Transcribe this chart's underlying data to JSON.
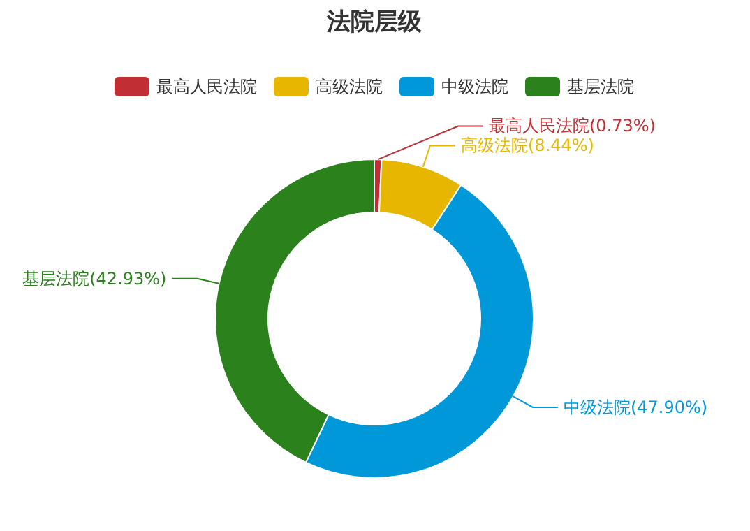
{
  "chart_data": {
    "type": "donut",
    "title": "法院层级",
    "categories": [
      "最高人民法院",
      "高级法院",
      "中级法院",
      "基层法院"
    ],
    "values": [
      0.73,
      8.44,
      47.9,
      42.93
    ],
    "colors": [
      "#c12e34",
      "#e6b600",
      "#0098d9",
      "#2b821d"
    ],
    "value_labels": [
      "(0.73%)",
      "(8.44%)",
      "(47.90%)",
      "(42.93%)"
    ],
    "legend": "top"
  }
}
